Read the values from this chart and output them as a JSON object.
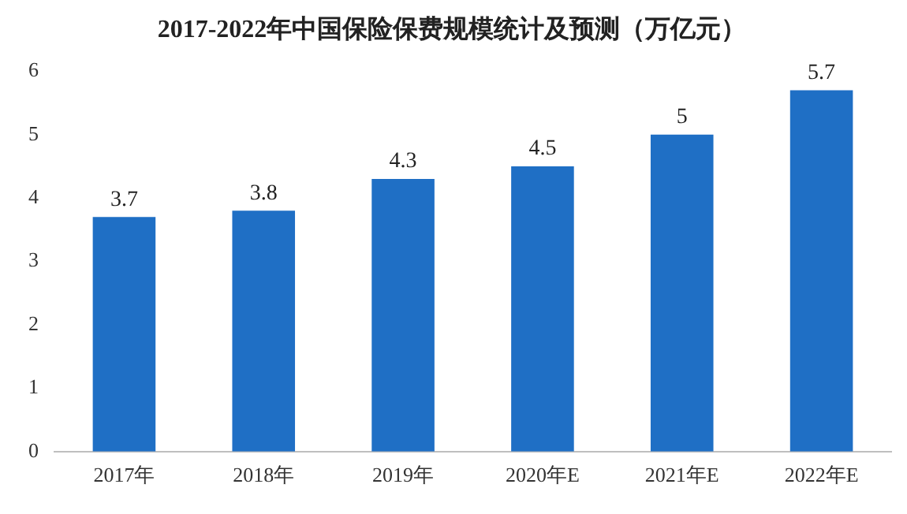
{
  "chart_data": {
    "type": "bar",
    "title": "2017-2022年中国保险保费规模统计及预测（万亿元）",
    "categories": [
      "2017年",
      "2018年",
      "2019年",
      "2020年E",
      "2021年E",
      "2022年E"
    ],
    "values": [
      3.7,
      3.8,
      4.3,
      4.5,
      5,
      5.7
    ],
    "color": "#1f6fc5",
    "ylim": [
      0,
      6
    ],
    "yticks": [
      0,
      1,
      2,
      3,
      4,
      5,
      6
    ],
    "grid": false,
    "data_labels": true
  }
}
